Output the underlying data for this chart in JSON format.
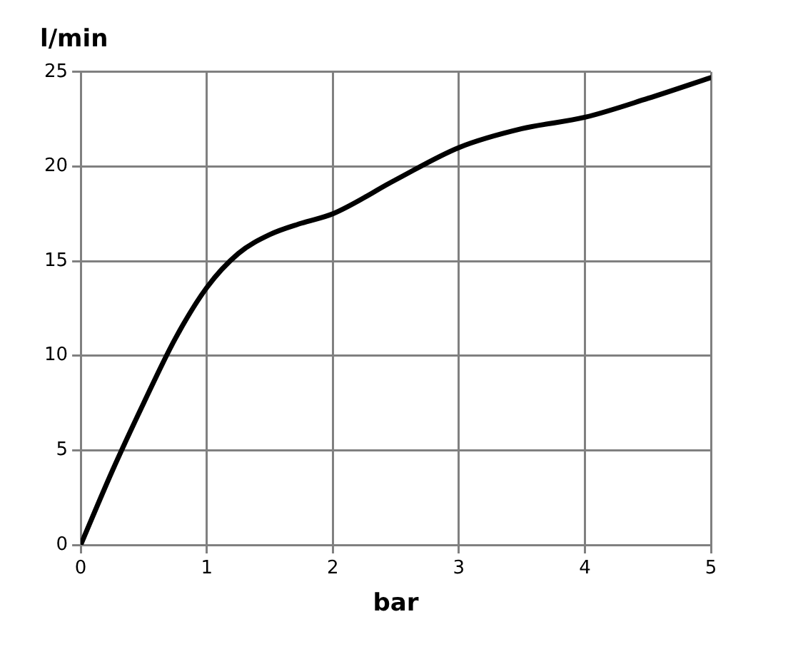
{
  "chart_data": {
    "type": "line",
    "xlabel": "bar",
    "ylabel": "l/min",
    "x": [
      0,
      0.25,
      0.5,
      0.75,
      1,
      1.25,
      1.5,
      1.75,
      2,
      2.5,
      3,
      3.5,
      4,
      4.5,
      5
    ],
    "series": [
      {
        "color": "#000000",
        "values": [
          0,
          3.9,
          7.5,
          10.9,
          13.6,
          15.4,
          16.4,
          17.0,
          17.5,
          19.3,
          21.0,
          22.0,
          22.6,
          23.6,
          24.7
        ]
      }
    ],
    "xlim": [
      0,
      5
    ],
    "xticks": [
      0,
      1,
      2,
      3,
      4,
      5
    ],
    "ylim": [
      0,
      25
    ],
    "yticks": [
      0,
      5,
      10,
      15,
      20,
      25
    ],
    "grid": true,
    "legend": false,
    "marker": "none",
    "line_style": "solid"
  }
}
